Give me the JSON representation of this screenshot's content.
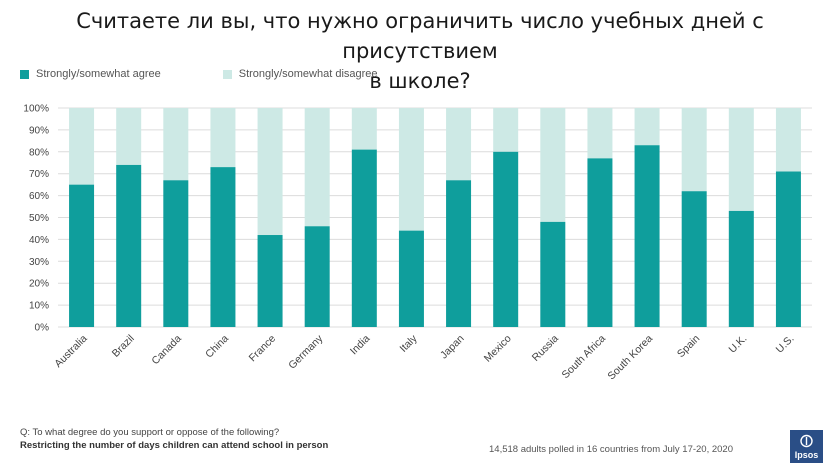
{
  "title_line1": "Считаете ли вы, что нужно ограничить число учебных дней с присутствием",
  "title_line2": "в школе?",
  "legend": {
    "agree": "Strongly/somewhat agree",
    "disagree": "Strongly/somewhat disagree"
  },
  "colors": {
    "agree": "#0f9e9c",
    "disagree": "#cde9e5",
    "grid": "#dcdcdc",
    "text": "#444444"
  },
  "footer": {
    "question_label": "Q:",
    "question": "To what degree do you support or oppose of the following?",
    "statement": "Restricting the number of days children can attend school in person",
    "note": "14,518 adults polled in 16 countries from July 17-20, 2020",
    "logo": "Ipsos"
  },
  "chart_data": {
    "type": "bar",
    "stacked": true,
    "categories": [
      "Australia",
      "Brazil",
      "Canada",
      "China",
      "France",
      "Germany",
      "India",
      "Italy",
      "Japan",
      "Mexico",
      "Russia",
      "South Africa",
      "South Korea",
      "Spain",
      "U.K.",
      "U.S."
    ],
    "series": [
      {
        "name": "Strongly/somewhat agree",
        "values": [
          65,
          74,
          67,
          73,
          42,
          46,
          81,
          44,
          67,
          80,
          48,
          77,
          83,
          62,
          53,
          71
        ]
      },
      {
        "name": "Strongly/somewhat disagree",
        "values": [
          35,
          26,
          33,
          27,
          58,
          54,
          19,
          56,
          33,
          20,
          52,
          23,
          17,
          38,
          47,
          29
        ]
      }
    ],
    "yticks": [
      "0%",
      "10%",
      "20%",
      "30%",
      "40%",
      "50%",
      "60%",
      "70%",
      "80%",
      "90%",
      "100%"
    ],
    "ylim": [
      0,
      100
    ],
    "grid": true,
    "legend_position": "top-left"
  }
}
